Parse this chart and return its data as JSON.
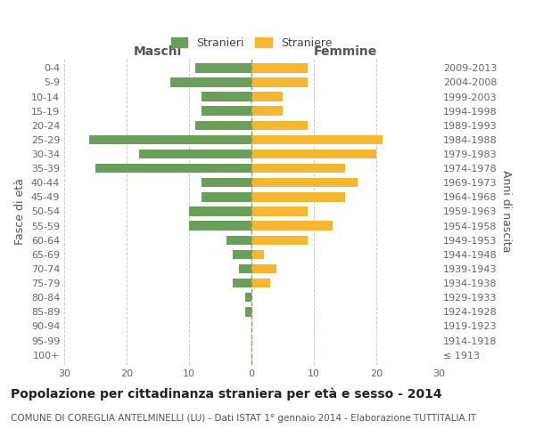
{
  "age_groups": [
    "100+",
    "95-99",
    "90-94",
    "85-89",
    "80-84",
    "75-79",
    "70-74",
    "65-69",
    "60-64",
    "55-59",
    "50-54",
    "45-49",
    "40-44",
    "35-39",
    "30-34",
    "25-29",
    "20-24",
    "15-19",
    "10-14",
    "5-9",
    "0-4"
  ],
  "birth_years": [
    "≤ 1913",
    "1914-1918",
    "1919-1923",
    "1924-1928",
    "1929-1933",
    "1934-1938",
    "1939-1943",
    "1944-1948",
    "1949-1953",
    "1954-1958",
    "1959-1963",
    "1964-1968",
    "1969-1973",
    "1974-1978",
    "1979-1983",
    "1984-1988",
    "1989-1993",
    "1994-1998",
    "1999-2003",
    "2004-2008",
    "2009-2013"
  ],
  "males": [
    0,
    0,
    0,
    1,
    1,
    3,
    2,
    3,
    4,
    10,
    10,
    8,
    8,
    25,
    18,
    26,
    9,
    8,
    8,
    13,
    9
  ],
  "females": [
    0,
    0,
    0,
    0,
    0,
    3,
    4,
    2,
    9,
    13,
    9,
    15,
    17,
    15,
    20,
    21,
    9,
    5,
    5,
    9,
    9
  ],
  "male_color": "#6a9e5b",
  "female_color": "#f5b731",
  "background_color": "#ffffff",
  "grid_color": "#cccccc",
  "title": "Popolazione per cittadinanza straniera per età e sesso - 2014",
  "subtitle": "COMUNE DI COREGLIA ANTELMINELLI (LU) - Dati ISTAT 1° gennaio 2014 - Elaborazione TUTTITALIA.IT",
  "left_label": "Maschi",
  "right_label": "Femmine",
  "ylabel": "Fasce di età",
  "right_ylabel": "Anni di nascita",
  "legend_male": "Stranieri",
  "legend_female": "Straniere",
  "xlim": 30,
  "title_fontsize": 10,
  "subtitle_fontsize": 7.5,
  "axis_fontsize": 9,
  "tick_fontsize": 8
}
